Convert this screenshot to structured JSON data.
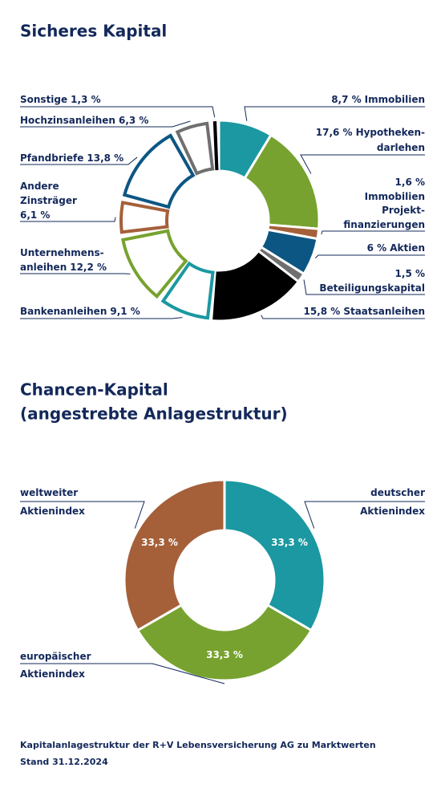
{
  "chart_data": [
    {
      "type": "pie",
      "title": [
        "Sicheres Kapital"
      ],
      "categories": [
        [
          "Immobilien"
        ],
        [
          "Hypotheken-",
          "darlehen"
        ],
        [
          "Immobilien",
          "Projekt-",
          "finanzierungen"
        ],
        [
          "Aktien"
        ],
        [
          "Beteiligungskapital"
        ],
        [
          "Staatsanleihen"
        ],
        [
          "Bankenanleihen"
        ],
        [
          "Unternehmens-",
          "anleihen"
        ],
        [
          "Andere",
          "Zinsträger"
        ],
        [
          "Pfandbriefe"
        ],
        [
          "Hochzinsanleihen"
        ],
        [
          "Sonstige"
        ]
      ],
      "values": [
        8.7,
        17.6,
        1.6,
        6,
        1.5,
        15.8,
        9.1,
        12.2,
        6.1,
        13.8,
        6.3,
        1.3
      ],
      "value_labels": [
        "8,7 %",
        "17,6 %",
        "1,6 %",
        "6 %",
        "1,5 %",
        "15,8 %",
        "9,1 %",
        "12,2 %",
        "6,1 %",
        "13,8 %",
        "6,3 %",
        "1,3 %"
      ],
      "colors": [
        "#1b98a1",
        "#77a22f",
        "#a5603a",
        "#0c5683",
        "#6f6f6f",
        "#000000",
        "#1b98a1",
        "#77a22f",
        "#a5603a",
        "#0c5683",
        "#6f6f6f",
        "#000000"
      ],
      "filled": [
        true,
        true,
        true,
        true,
        true,
        true,
        false,
        false,
        false,
        false,
        false,
        false
      ]
    },
    {
      "type": "pie",
      "title": [
        "Chancen-Kapital",
        "(angestrebte Anlagestruktur)"
      ],
      "categories": [
        [
          "deutscher",
          "Aktienindex"
        ],
        [
          "europäischer",
          "Aktienindex"
        ],
        [
          "weltweiter",
          "Aktienindex"
        ]
      ],
      "values": [
        33.3,
        33.3,
        33.3
      ],
      "value_labels": [
        "33,3 %",
        "33,3 %",
        "33,3 %"
      ],
      "colors": [
        "#1b98a1",
        "#77a22f",
        "#a5603a"
      ],
      "filled": [
        true,
        true,
        true
      ]
    }
  ],
  "footer": [
    "Kapitalanlagestruktur der R+V Lebensversicherung AG zu Marktwerten",
    "Stand 31.12.2024"
  ]
}
